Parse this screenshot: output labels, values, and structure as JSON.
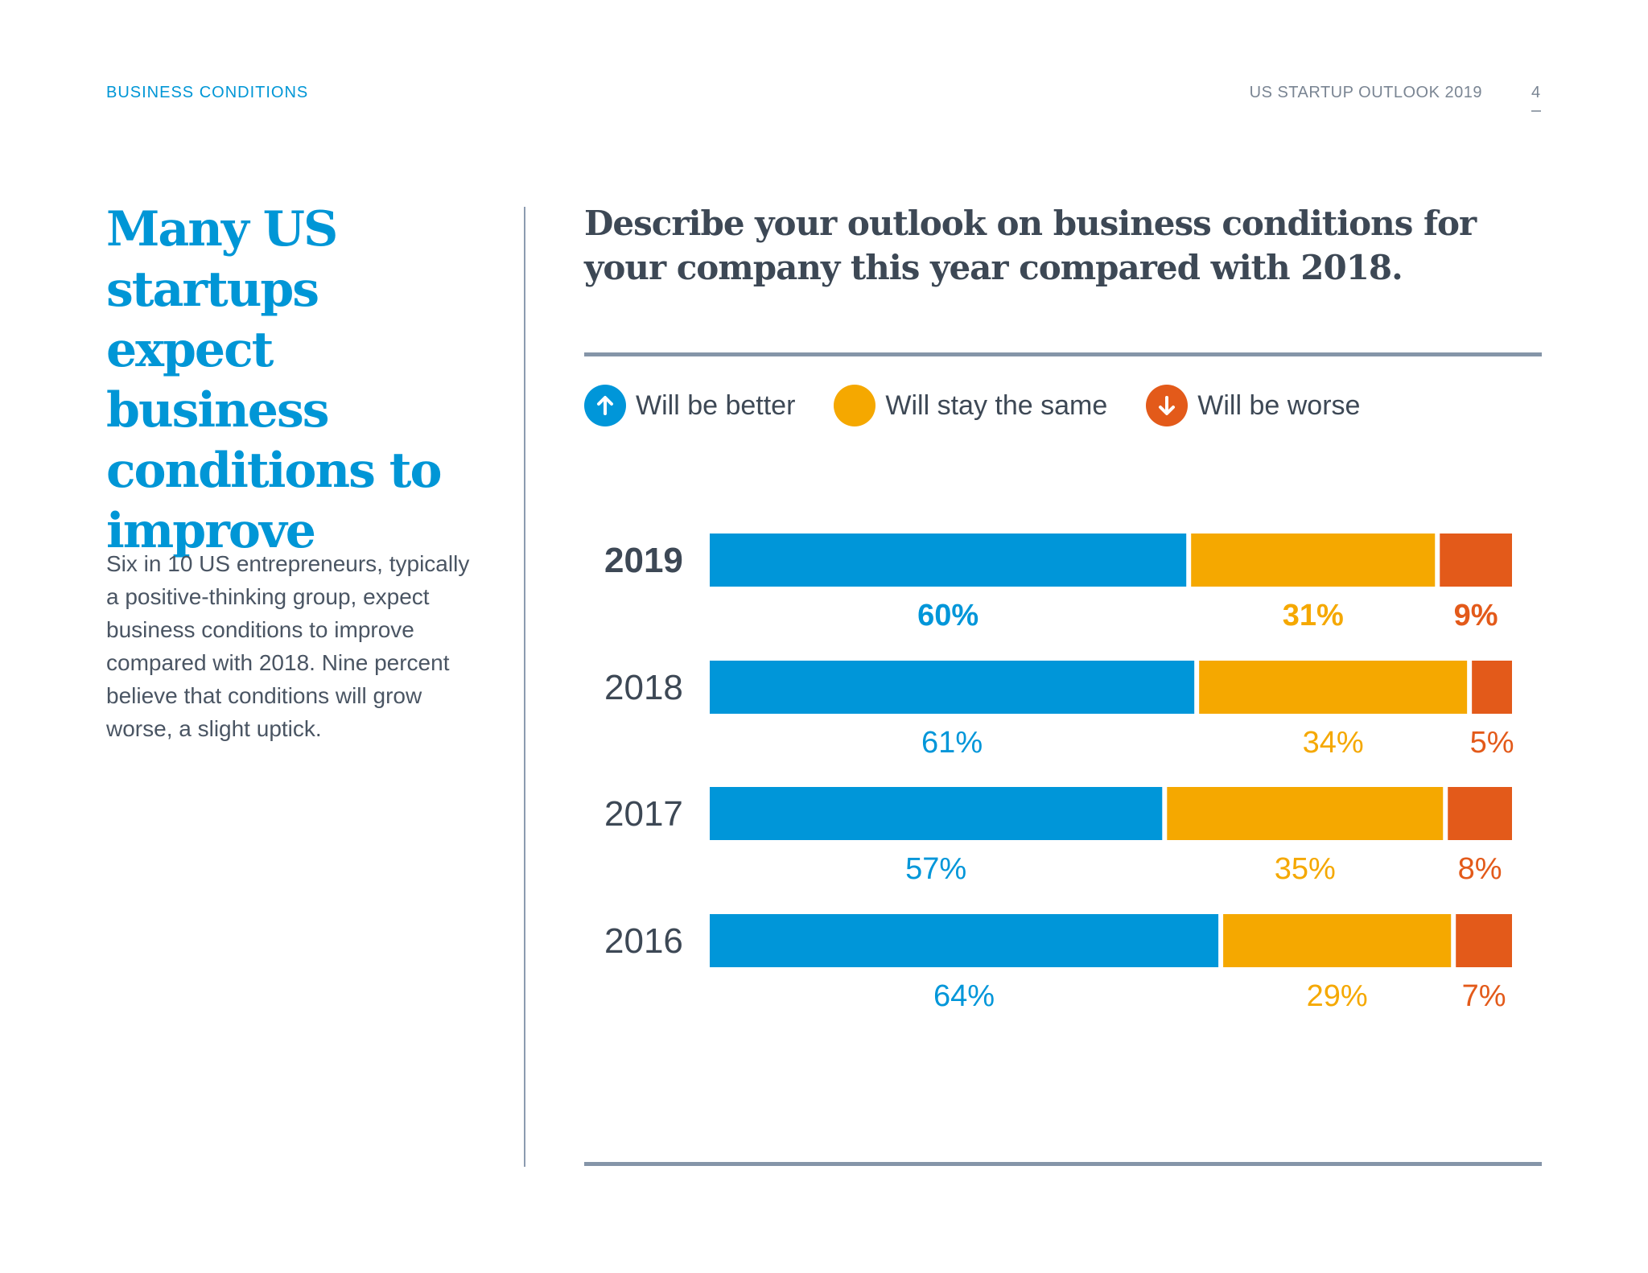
{
  "header": {
    "section": "BUSINESS CONDITIONS",
    "report": "US STARTUP OUTLOOK 2019",
    "page": "4"
  },
  "sidebar": {
    "headline": "Many US startups expect business conditions to improve",
    "body": "Six in 10 US entrepreneurs, typically a positive-thinking group, expect business conditions to improve compared with 2018. Nine percent believe that conditions will grow worse, a slight uptick."
  },
  "chart_data": {
    "type": "bar",
    "orientation": "horizontal-stacked-100",
    "title": "Describe your outlook on business conditions for your company this year compared with 2018.",
    "categories": [
      "2019",
      "2018",
      "2017",
      "2016"
    ],
    "series": [
      {
        "name": "Will be better",
        "color": "#0096d9",
        "icon": "arrow-up-icon",
        "values": [
          60,
          61,
          57,
          64
        ]
      },
      {
        "name": "Will stay the same",
        "color": "#f5a800",
        "icon": "circle-icon",
        "values": [
          31,
          34,
          35,
          29
        ]
      },
      {
        "name": "Will be worse",
        "color": "#e35a1a",
        "icon": "arrow-down-icon",
        "values": [
          9,
          5,
          8,
          7
        ]
      }
    ],
    "value_suffix": "%",
    "legend": "top-left",
    "highlight_category": "2019"
  }
}
